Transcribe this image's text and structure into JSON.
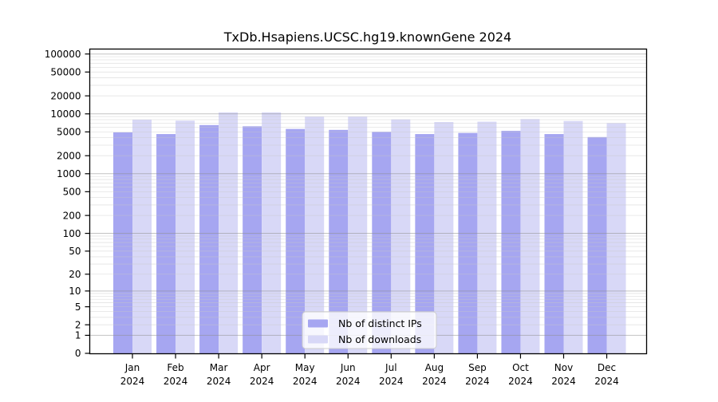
{
  "chart_data": {
    "type": "bar",
    "title": "TxDb.Hsapiens.UCSC.hg19.knownGene 2024",
    "categories": [
      "Jan 2024",
      "Feb 2024",
      "Mar 2024",
      "Apr 2024",
      "May 2024",
      "Jun 2024",
      "Jul 2024",
      "Aug 2024",
      "Sep 2024",
      "Oct 2024",
      "Nov 2024",
      "Dec 2024"
    ],
    "series": [
      {
        "name": "Nb of distinct IPs",
        "color": "#a6a6f1",
        "values": [
          4900,
          4600,
          6500,
          6200,
          5600,
          5400,
          5000,
          4600,
          4800,
          5200,
          4600,
          4100
        ]
      },
      {
        "name": "Nb of downloads",
        "color": "#d8d8f7",
        "values": [
          8000,
          7700,
          10600,
          10600,
          9000,
          9000,
          8100,
          7300,
          7400,
          8200,
          7600,
          7000
        ]
      }
    ],
    "xlabel": "",
    "ylabel": "",
    "y_ticks": [
      0,
      1,
      2,
      5,
      10,
      20,
      50,
      100,
      200,
      500,
      1000,
      2000,
      5000,
      10000,
      20000,
      50000,
      100000
    ],
    "ylim": [
      0,
      100000
    ],
    "y_scale": "log10(value+1)",
    "grid": "horizontal major and minor gridlines",
    "legend_position": "inside bottom center"
  },
  "colors": {
    "bar_distinct_ips": "#a6a6f1",
    "bar_downloads": "#d8d8f7",
    "major_gridline": "#909090",
    "minor_gridline": "#c8c8c8",
    "frame": "#000000",
    "legend_border": "#cccccc",
    "legend_background": "#ffffff"
  }
}
